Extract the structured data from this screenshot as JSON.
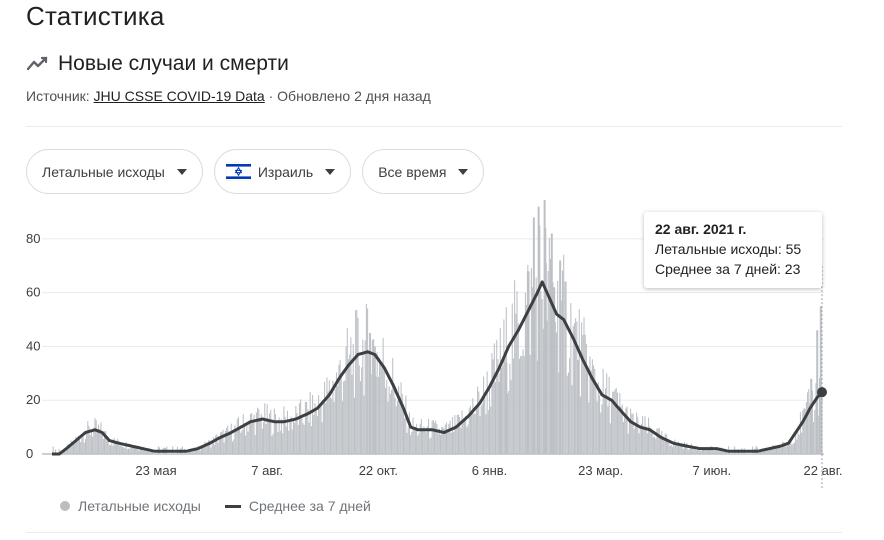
{
  "page": {
    "title": "Статистика"
  },
  "card": {
    "title": "Новые случаи и смерти",
    "source_prefix": "Источник: ",
    "source_link": "JHU CSSE COVID-19 Data",
    "source_suffix": " · Обновлено 2 дня назад"
  },
  "filters": {
    "metric": "Летальные исходы",
    "country": "Израиль",
    "period": "Все время"
  },
  "tooltip": {
    "date": "22 авг. 2021 г.",
    "row1": "Летальные исходы: 55",
    "row2": "Среднее за 7 дней: 23"
  },
  "legend": {
    "bars": "Летальные исходы",
    "line": "Среднее за 7 дней"
  },
  "colors": {
    "bars": "#bdc1c6",
    "line": "#3c4043",
    "grid": "#ebebeb",
    "flag_blue": "#0038b8"
  },
  "icons": {
    "trend": "trending-line-icon",
    "flag": "israel-flag-icon",
    "caret": "caret-down-icon"
  },
  "chart_data": {
    "type": "bar",
    "x_tick_labels": [
      "23 мая",
      "7 авг.",
      "22 окт.",
      "6 янв.",
      "23 мар.",
      "7 июн.",
      "22 авг."
    ],
    "y_ticks": [
      0,
      20,
      40,
      60,
      80
    ],
    "ylim": [
      0,
      90
    ],
    "grid": true,
    "legend_position": "bottom-left",
    "series": [
      {
        "name": "Летальные исходы",
        "kind": "bar"
      },
      {
        "name": "Среднее за 7 дней",
        "kind": "line"
      }
    ],
    "avg_keypoints": [
      [
        0,
        0
      ],
      [
        6,
        0
      ],
      [
        12,
        2
      ],
      [
        20,
        5
      ],
      [
        28,
        8
      ],
      [
        36,
        9
      ],
      [
        42,
        8
      ],
      [
        48,
        5
      ],
      [
        56,
        4
      ],
      [
        66,
        3
      ],
      [
        76,
        2
      ],
      [
        86,
        1
      ],
      [
        100,
        1
      ],
      [
        112,
        1
      ],
      [
        122,
        2
      ],
      [
        132,
        4
      ],
      [
        140,
        6
      ],
      [
        150,
        8
      ],
      [
        158,
        10
      ],
      [
        166,
        12
      ],
      [
        176,
        13
      ],
      [
        186,
        12
      ],
      [
        194,
        12
      ],
      [
        204,
        13
      ],
      [
        214,
        15
      ],
      [
        222,
        17
      ],
      [
        232,
        22
      ],
      [
        240,
        28
      ],
      [
        248,
        33
      ],
      [
        256,
        37
      ],
      [
        264,
        38
      ],
      [
        270,
        37
      ],
      [
        278,
        32
      ],
      [
        286,
        25
      ],
      [
        294,
        17
      ],
      [
        300,
        10
      ],
      [
        306,
        9
      ],
      [
        318,
        9
      ],
      [
        328,
        8
      ],
      [
        338,
        10
      ],
      [
        348,
        14
      ],
      [
        358,
        19
      ],
      [
        366,
        25
      ],
      [
        374,
        32
      ],
      [
        382,
        40
      ],
      [
        390,
        46
      ],
      [
        398,
        53
      ],
      [
        406,
        60
      ],
      [
        410,
        64
      ],
      [
        416,
        58
      ],
      [
        422,
        52
      ],
      [
        428,
        50
      ],
      [
        436,
        43
      ],
      [
        444,
        35
      ],
      [
        452,
        28
      ],
      [
        460,
        22
      ],
      [
        468,
        20
      ],
      [
        476,
        16
      ],
      [
        484,
        12
      ],
      [
        492,
        10
      ],
      [
        500,
        9
      ],
      [
        510,
        6
      ],
      [
        520,
        4
      ],
      [
        530,
        3
      ],
      [
        542,
        2
      ],
      [
        556,
        2
      ],
      [
        566,
        1
      ],
      [
        580,
        1
      ],
      [
        590,
        1
      ],
      [
        600,
        2
      ],
      [
        610,
        3
      ],
      [
        616,
        4
      ],
      [
        622,
        8
      ],
      [
        628,
        12
      ],
      [
        634,
        17
      ],
      [
        640,
        21
      ],
      [
        644,
        23
      ]
    ],
    "spikes": [
      [
        403,
        88
      ],
      [
        407,
        92
      ],
      [
        412,
        95
      ],
      [
        418,
        82
      ],
      [
        413,
        71
      ],
      [
        425,
        72
      ],
      [
        398,
        68
      ],
      [
        440,
        35
      ],
      [
        420,
        62
      ],
      [
        380,
        34
      ],
      [
        375,
        30
      ],
      [
        266,
        45
      ],
      [
        270,
        40
      ],
      [
        640,
        46
      ],
      [
        643,
        55
      ],
      [
        635,
        28
      ]
    ],
    "last_point": {
      "date": "22 авг. 2021 г.",
      "deaths": 55,
      "avg7": 23
    }
  }
}
